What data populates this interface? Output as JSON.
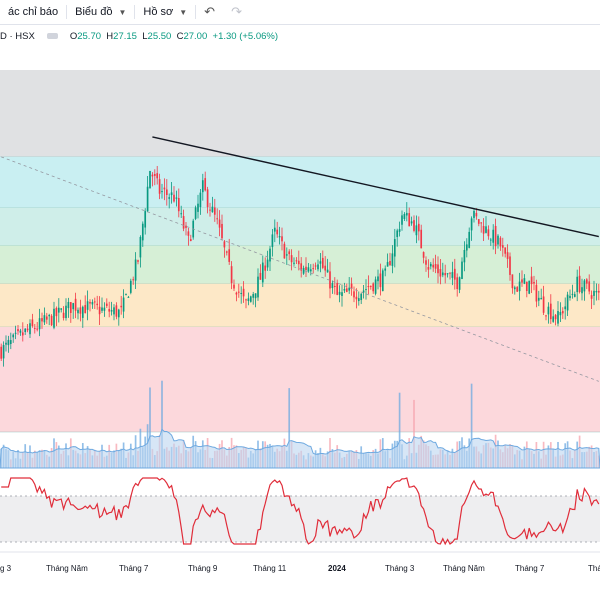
{
  "toolbar": {
    "indicators_label": "ác chỉ báo",
    "chart_type_label": "Biểu đồ",
    "profile_label": "Hồ sơ",
    "undo_icon": "undo-icon",
    "redo_icon": "redo-icon"
  },
  "legend": {
    "symbol": "D · HSX",
    "o_label": "O",
    "o_value": "25.70",
    "h_label": "H",
    "h_value": "27.15",
    "l_label": "L",
    "l_value": "25.50",
    "c_label": "C",
    "c_value": "27.00",
    "change": "+1.30 (+5.06%)"
  },
  "colors": {
    "up": "#089981",
    "down": "#f23645",
    "rsi": "#e02d3a",
    "volume": "#6ea9e0"
  },
  "chart_data": {
    "type": "candlestick",
    "x_ticks": [
      "g 3",
      "Tháng Năm",
      "Tháng 7",
      "Tháng 9",
      "Tháng 11",
      "2024",
      "Tháng 3",
      "Tháng Năm",
      "Tháng 7",
      "Tháng"
    ],
    "y_range": [
      16,
      36
    ],
    "bands": [
      {
        "from": 31.2,
        "to": 36,
        "color": "#e0e1e3"
      },
      {
        "from": 28.4,
        "to": 31.2,
        "color": "#c9eff2"
      },
      {
        "from": 26.3,
        "to": 28.4,
        "color": "#cfeee9"
      },
      {
        "from": 24.2,
        "to": 26.3,
        "color": "#d6efd6"
      },
      {
        "from": 21.8,
        "to": 24.2,
        "color": "#fde8c7"
      },
      {
        "from": 16,
        "to": 21.8,
        "color": "#fcd8dc"
      }
    ],
    "key_points": [
      {
        "x": 0,
        "price": 20.5
      },
      {
        "x": 10,
        "price": 21.5
      },
      {
        "x": 20,
        "price": 22.2
      },
      {
        "x": 30,
        "price": 23.0
      },
      {
        "x": 40,
        "price": 22.8
      },
      {
        "x": 50,
        "price": 22.6
      },
      {
        "x": 57,
        "price": 25.5
      },
      {
        "x": 62,
        "price": 30.5
      },
      {
        "x": 66,
        "price": 29.3
      },
      {
        "x": 72,
        "price": 29.0
      },
      {
        "x": 78,
        "price": 26.5
      },
      {
        "x": 84,
        "price": 29.5
      },
      {
        "x": 90,
        "price": 27.5
      },
      {
        "x": 96,
        "price": 24.5
      },
      {
        "x": 102,
        "price": 23.0
      },
      {
        "x": 108,
        "price": 24.5
      },
      {
        "x": 114,
        "price": 27.0
      },
      {
        "x": 120,
        "price": 25.5
      },
      {
        "x": 126,
        "price": 25.0
      },
      {
        "x": 132,
        "price": 25.6
      },
      {
        "x": 140,
        "price": 23.5
      },
      {
        "x": 150,
        "price": 23.8
      },
      {
        "x": 160,
        "price": 24.6
      },
      {
        "x": 167,
        "price": 28.0
      },
      {
        "x": 172,
        "price": 27.5
      },
      {
        "x": 178,
        "price": 25.2
      },
      {
        "x": 190,
        "price": 24.3
      },
      {
        "x": 196,
        "price": 28.0
      },
      {
        "x": 202,
        "price": 27.2
      },
      {
        "x": 208,
        "price": 26.3
      },
      {
        "x": 214,
        "price": 24.0
      },
      {
        "x": 220,
        "price": 24.2
      },
      {
        "x": 226,
        "price": 23.0
      },
      {
        "x": 232,
        "price": 22.3
      },
      {
        "x": 240,
        "price": 24.2
      },
      {
        "x": 249,
        "price": 23.5
      }
    ],
    "trendlines": [
      {
        "from": {
          "x": 63,
          "price": 32.3
        },
        "to": {
          "x": 249,
          "price": 26.8
        },
        "style": "solid"
      },
      {
        "from": {
          "x": 0,
          "price": 31.2
        },
        "to": {
          "x": 249,
          "price": 18.8
        },
        "style": "dashed"
      }
    ],
    "rsi_range": [
      10,
      90
    ]
  }
}
